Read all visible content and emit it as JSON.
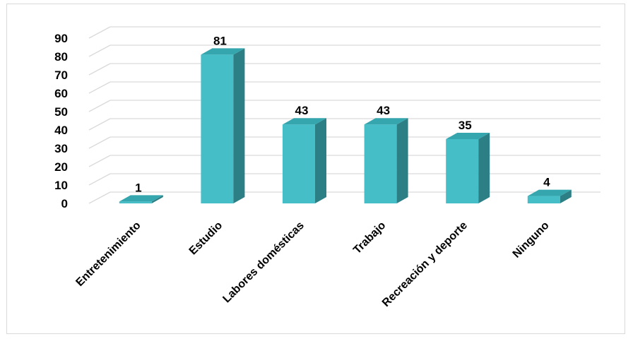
{
  "chart_data": {
    "type": "bar",
    "style": "3d-column",
    "categories": [
      "Entretenimiento",
      "Estudio",
      "Labores domésticas",
      "Trabajo",
      "Recreación y deporte",
      "Ninguno"
    ],
    "series": [
      {
        "values": [
          1,
          81,
          43,
          43,
          35,
          4
        ]
      }
    ],
    "ylim": [
      0,
      90
    ],
    "yticks": [
      "0",
      "10",
      "20",
      "30",
      "40",
      "50",
      "60",
      "70",
      "80",
      "90"
    ],
    "data_labels": [
      "1",
      "81",
      "43",
      "43",
      "35",
      "4"
    ],
    "grid": true,
    "legend": "none",
    "colors": {
      "front": "#45bec8",
      "top": "#36a6ae",
      "side": "#2c7f85",
      "grid": "#d9d9d9"
    }
  }
}
